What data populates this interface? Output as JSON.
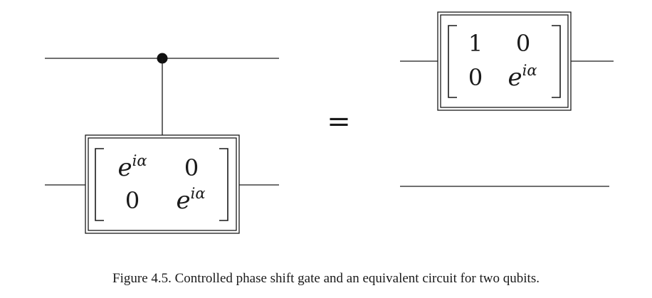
{
  "left_circuit": {
    "gate_matrix": {
      "r1c1_base": "e",
      "r1c1_exp": "iα",
      "r1c2": "0",
      "r2c1": "0",
      "r2c2_base": "e",
      "r2c2_exp": "iα"
    }
  },
  "equals_sign": "=",
  "right_circuit": {
    "gate_matrix": {
      "r1c1": "1",
      "r1c2": "0",
      "r2c1": "0",
      "r2c2_base": "e",
      "r2c2_exp": "iα"
    }
  },
  "caption": "Figure 4.5. Controlled phase shift gate and an equivalent circuit for two qubits."
}
